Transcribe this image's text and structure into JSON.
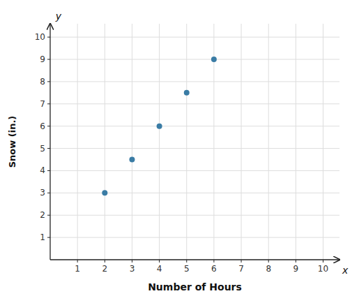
{
  "chart_data": {
    "type": "scatter",
    "x_label": "Number of Hours",
    "y_label": "Snow (in.)",
    "annotations": [
      "x",
      "y"
    ],
    "x": [
      2,
      3,
      4,
      5,
      6
    ],
    "values": [
      3,
      4.5,
      6,
      7.5,
      9
    ],
    "color": "#3a7ca5",
    "xlim": [
      0,
      10.6
    ],
    "ylim": [
      0,
      10.6
    ],
    "xticks": [
      1,
      2,
      3,
      4,
      5,
      6,
      7,
      8,
      9,
      10
    ],
    "yticks": [
      1,
      2,
      3,
      4,
      5,
      6,
      7,
      8,
      9,
      10
    ],
    "grid": true
  }
}
